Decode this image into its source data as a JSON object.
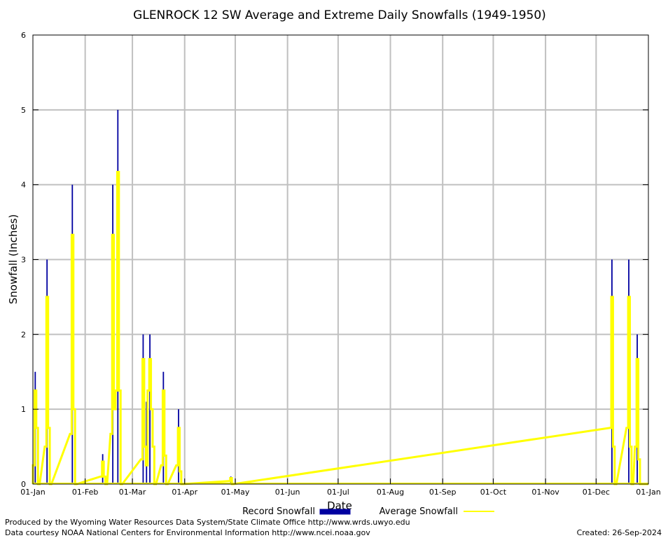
{
  "chart_data": {
    "type": "bar",
    "title": "GLENROCK 12 SW Average and Extreme Daily Snowfalls (1949-1950)",
    "xlabel": "Date",
    "ylabel": "Snowfall (Inches)",
    "ylim": [
      0,
      6
    ],
    "yticks": [
      "0",
      "1",
      "2",
      "3",
      "4",
      "5",
      "6"
    ],
    "xlim_days": [
      0,
      365
    ],
    "xticks": [
      {
        "day": 0,
        "label": "01-Jan"
      },
      {
        "day": 31,
        "label": "01-Feb"
      },
      {
        "day": 59,
        "label": "01-Mar"
      },
      {
        "day": 90,
        "label": "01-Apr"
      },
      {
        "day": 120,
        "label": "01-May"
      },
      {
        "day": 151,
        "label": "01-Jun"
      },
      {
        "day": 181,
        "label": "01-Jul"
      },
      {
        "day": 212,
        "label": "01-Aug"
      },
      {
        "day": 243,
        "label": "01-Sep"
      },
      {
        "day": 273,
        "label": "01-Oct"
      },
      {
        "day": 304,
        "label": "01-Nov"
      },
      {
        "day": 334,
        "label": "01-Dec"
      },
      {
        "day": 365,
        "label": "01-Jan"
      }
    ],
    "grid": true,
    "legend_position": "bottom-center",
    "series": [
      {
        "name": "Record Snowfall",
        "color": "#0000a0",
        "kind": "bar",
        "points": [
          [
            1,
            1.5
          ],
          [
            8,
            3.0
          ],
          [
            23,
            4.0
          ],
          [
            41,
            0.4
          ],
          [
            47,
            4.0
          ],
          [
            50,
            5.0
          ],
          [
            65,
            2.0
          ],
          [
            67,
            1.1
          ],
          [
            69,
            2.0
          ],
          [
            77,
            1.5
          ],
          [
            86,
            1.0
          ],
          [
            117,
            0.1
          ],
          [
            343,
            3.0
          ],
          [
            353,
            3.0
          ],
          [
            358,
            2.0
          ]
        ]
      },
      {
        "name": "Average Snowfall",
        "color": "#ffff00",
        "kind": "step",
        "points": [
          [
            0,
            0.25
          ],
          [
            1,
            1.25
          ],
          [
            2,
            0.75
          ],
          [
            3,
            0
          ],
          [
            7,
            0.5
          ],
          [
            8,
            2.5
          ],
          [
            9,
            0.75
          ],
          [
            10,
            0
          ],
          [
            22,
            0.67
          ],
          [
            23,
            3.33
          ],
          [
            24,
            1.0
          ],
          [
            25,
            0
          ],
          [
            40,
            0.1
          ],
          [
            41,
            0.3
          ],
          [
            42,
            0.1
          ],
          [
            43,
            0
          ],
          [
            46,
            0.67
          ],
          [
            47,
            3.33
          ],
          [
            48,
            1.0
          ],
          [
            49,
            1.25
          ],
          [
            50,
            4.17
          ],
          [
            51,
            1.25
          ],
          [
            52,
            0
          ],
          [
            64,
            0.33
          ],
          [
            65,
            1.67
          ],
          [
            66,
            0.5
          ],
          [
            67,
            0.25
          ],
          [
            68,
            1.25
          ],
          [
            69,
            1.67
          ],
          [
            70,
            1.0
          ],
          [
            71,
            0.5
          ],
          [
            72,
            0
          ],
          [
            76,
            0.25
          ],
          [
            77,
            1.25
          ],
          [
            78,
            0.38
          ],
          [
            79,
            0
          ],
          [
            85,
            0.25
          ],
          [
            86,
            0.75
          ],
          [
            87,
            0.17
          ],
          [
            88,
            0
          ],
          [
            116,
            0.04
          ],
          [
            117,
            0.08
          ],
          [
            118,
            0
          ],
          [
            342,
            0.75
          ],
          [
            343,
            2.5
          ],
          [
            344,
            0.5
          ],
          [
            345,
            0
          ],
          [
            352,
            0.75
          ],
          [
            353,
            2.5
          ],
          [
            354,
            0.5
          ],
          [
            355,
            0
          ],
          [
            357,
            0.5
          ],
          [
            358,
            1.67
          ],
          [
            359,
            0.33
          ],
          [
            360,
            0
          ]
        ]
      }
    ]
  },
  "footer": {
    "produced_by": "Produced by the Wyoming Water Resources Data System/State Climate Office http://www.wrds.uwyo.edu",
    "courtesy": "Data courtesy NOAA National Centers for Environmental Information http://www.ncei.noaa.gov",
    "created": "Created:  26-Sep-2024"
  }
}
